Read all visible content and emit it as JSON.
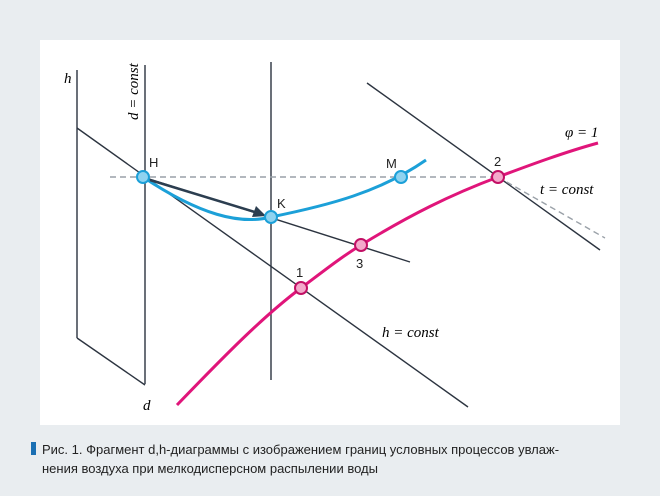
{
  "diagram": {
    "axis_h": "h",
    "axis_d_const": "d = const",
    "axis_d": "d",
    "point_H": "H",
    "point_K": "K",
    "point_M": "M",
    "point_1": "1",
    "point_2": "2",
    "point_3": "3",
    "phi_label": "φ = 1",
    "t_label": "t = const",
    "h_label": "h = const"
  },
  "caption": {
    "lines": [
      "Рис. 1. Фрагмент d,h-диаграммы с изображением границ условных процессов увлаж-",
      "нения воздуха при мелкодисперсном распылении воды"
    ]
  }
}
